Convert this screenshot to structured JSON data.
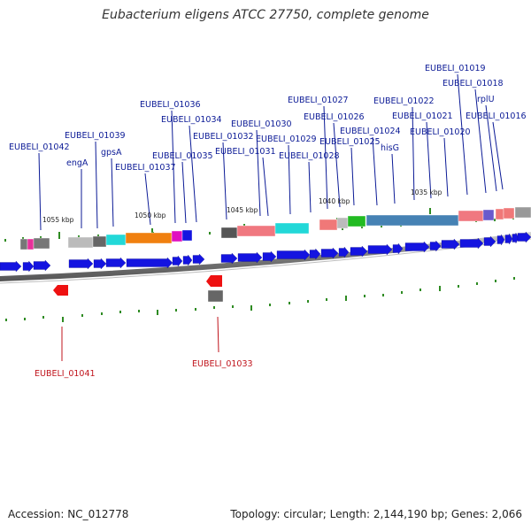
{
  "title": "Eubacterium eligens ATCC 27750, complete genome",
  "footer": {
    "accession": "Accession: NC_012778",
    "summary": "Topology: circular; Length: 2,144,190 bp; Genes: 2,066"
  },
  "colors": {
    "forward_gene": "#1414e0",
    "reverse_gene": "#ee1111",
    "upper_label": "#0b1a96",
    "lower_label": "#c0141c",
    "tick": "#2e8b22",
    "backbone": "#777777"
  },
  "scale_labels": [
    "1055 kbp",
    "1050 kbp",
    "1045 kbp",
    "1040 kbp",
    "1035 kbp"
  ],
  "upper_labels": [
    "EUBELI_01042",
    "engA",
    "EUBELI_01039",
    "gpsA",
    "EUBELI_01037",
    "EUBELI_01036",
    "EUBELI_01035",
    "EUBELI_01034",
    "EUBELI_01032",
    "EUBELI_01031",
    "EUBELI_01030",
    "EUBELI_01029",
    "EUBELI_01028",
    "EUBELI_01027",
    "EUBELI_01026",
    "EUBELI_01025",
    "hisG",
    "EUBELI_01024",
    "EUBELI_01022",
    "EUBELI_01021",
    "EUBELI_01020",
    "EUBELI_01019",
    "EUBELI_01018",
    "rplU",
    "EUBELI_01016"
  ],
  "lower_labels": [
    "EUBELI_01041",
    "EUBELI_01033"
  ]
}
